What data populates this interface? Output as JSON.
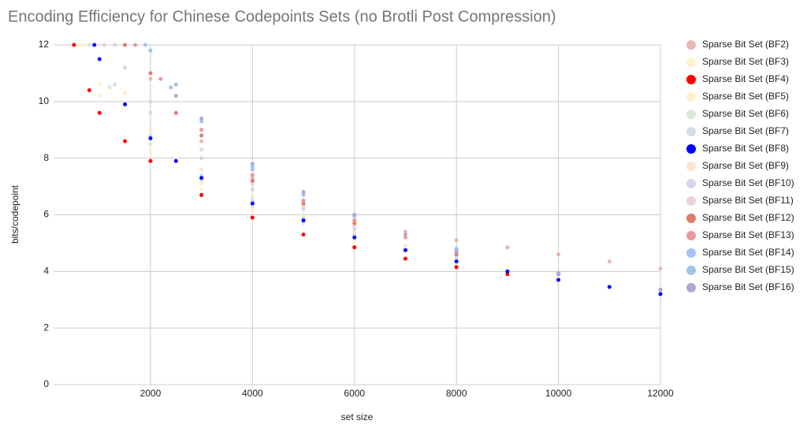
{
  "chart_data": {
    "type": "scatter",
    "title": "Encoding Efficiency for Chinese Codepoints Sets (no Brotli Post Compression)",
    "x_label": "set size",
    "y_label": "bits/codepoint",
    "xlim": [
      100,
      12000
    ],
    "ylim": [
      0,
      12
    ],
    "xticks": [
      2000,
      4000,
      6000,
      8000,
      10000,
      12000
    ],
    "yticks": [
      0,
      2,
      4,
      6,
      8,
      10,
      12
    ],
    "grid": true,
    "legend": "right",
    "series": [
      {
        "name": "Sparse Bit Set (BF2)",
        "color": "#e6b8af",
        "x": [
          1500,
          2000,
          3000,
          4000,
          5000,
          6000,
          7000,
          8000,
          9000,
          10000,
          11000,
          12000
        ],
        "values": [
          12,
          10.8,
          8.6,
          7.3,
          6.4,
          5.8,
          5.4,
          5.1,
          4.85,
          4.6,
          4.35,
          4.1
        ]
      },
      {
        "name": "Sparse Bit Set (BF3)",
        "color": "#fff2cc",
        "x": [
          600,
          1000,
          2000,
          3000,
          4000,
          6000,
          8000,
          10000,
          12000
        ],
        "values": [
          12,
          10.2,
          8.1,
          6.9,
          6.1,
          5.0,
          4.2,
          3.8,
          3.4
        ]
      },
      {
        "name": "Sparse Bit Set (BF4)",
        "color": "#ff0000",
        "x": [
          500,
          800,
          1000,
          1500,
          2000,
          3000,
          4000,
          5000,
          6000,
          7000,
          8000,
          9000
        ],
        "values": [
          12,
          10.4,
          9.6,
          8.6,
          7.9,
          6.7,
          5.9,
          5.3,
          4.85,
          4.45,
          4.15,
          3.9
        ]
      },
      {
        "name": "Sparse Bit Set (BF5)",
        "color": "#fff2cc",
        "x": [
          700,
          1000,
          2000,
          3000,
          4000,
          6000,
          8000,
          10000,
          12000
        ],
        "values": [
          12,
          10.6,
          8.3,
          7.1,
          6.2,
          5.1,
          4.3,
          3.8,
          3.4
        ]
      },
      {
        "name": "Sparse Bit Set (BF6)",
        "color": "#d9ead3",
        "x": [
          800,
          1200,
          2000,
          3000,
          4000,
          5000,
          6000,
          8000
        ],
        "values": [
          12,
          10.5,
          8.5,
          7.2,
          6.3,
          5.7,
          5.2,
          4.4
        ]
      },
      {
        "name": "Sparse Bit Set (BF7)",
        "color": "#d0e0e3",
        "x": [
          900,
          1300,
          2000,
          3000,
          4000,
          5000,
          6000
        ],
        "values": [
          12,
          10.6,
          8.8,
          7.4,
          6.5,
          5.9,
          5.3
        ]
      },
      {
        "name": "Sparse Bit Set (BF8)",
        "color": "#0000ff",
        "x": [
          900,
          1000,
          1500,
          2000,
          2500,
          3000,
          4000,
          5000,
          6000,
          7000,
          8000,
          9000,
          10000,
          11000,
          12000
        ],
        "values": [
          12,
          11.5,
          9.9,
          8.7,
          7.9,
          7.3,
          6.4,
          5.8,
          5.2,
          4.75,
          4.35,
          4.0,
          3.7,
          3.45,
          3.2
        ]
      },
      {
        "name": "Sparse Bit Set (BF9)",
        "color": "#fce5cd",
        "x": [
          1000,
          1500,
          2000,
          3000,
          4000,
          5000,
          6000,
          7000
        ],
        "values": [
          12,
          10.3,
          9.0,
          7.6,
          6.6,
          6.0,
          5.4,
          4.9
        ]
      },
      {
        "name": "Sparse Bit Set (BF10)",
        "color": "#d9d2e9",
        "x": [
          1100,
          1500,
          2000,
          3000,
          4000,
          5000,
          6000,
          8000,
          10000,
          12000
        ],
        "values": [
          12,
          11.2,
          9.6,
          8.0,
          6.9,
          6.2,
          5.5,
          4.5,
          3.9,
          3.35
        ]
      },
      {
        "name": "Sparse Bit Set (BF11)",
        "color": "#ead1dc",
        "x": [
          1300,
          2000,
          3000,
          4000,
          5000,
          6000,
          8000,
          10000,
          12000
        ],
        "values": [
          12,
          10.0,
          8.3,
          7.1,
          6.3,
          5.6,
          4.6,
          3.9,
          3.35
        ]
      },
      {
        "name": "Sparse Bit Set (BF12)",
        "color": "#dd7e6b",
        "x": [
          1500,
          2000,
          2500,
          3000,
          4000,
          5000,
          6000,
          8000,
          10000,
          12000
        ],
        "values": [
          12,
          11,
          9.6,
          8.8,
          7.2,
          6.4,
          5.7,
          4.6,
          3.9,
          3.35
        ]
      },
      {
        "name": "Sparse Bit Set (BF13)",
        "color": "#ea9999",
        "x": [
          1700,
          2200,
          3000,
          4000,
          5000,
          6000,
          7000,
          8000,
          10000,
          12000
        ],
        "values": [
          12,
          10.8,
          9.0,
          7.4,
          6.5,
          5.8,
          5.2,
          4.7,
          3.95,
          3.35
        ]
      },
      {
        "name": "Sparse Bit Set (BF14)",
        "color": "#a4c2f4",
        "x": [
          1900,
          2400,
          3000,
          4000,
          5000,
          6000,
          8000,
          10000,
          12000
        ],
        "values": [
          12,
          10.5,
          9.3,
          7.6,
          6.7,
          5.95,
          4.75,
          3.95,
          3.35
        ]
      },
      {
        "name": "Sparse Bit Set (BF15)",
        "color": "#9fc5e8",
        "x": [
          2000,
          2500,
          3000,
          4000,
          5000,
          6000,
          8000,
          10000,
          12000
        ],
        "values": [
          11.8,
          10.6,
          9.4,
          7.7,
          6.8,
          6.0,
          4.8,
          3.95,
          3.35
        ]
      },
      {
        "name": "Sparse Bit Set (BF16)",
        "color": "#b4a7d6",
        "x": [
          2500,
          3000,
          4000,
          5000,
          6000,
          7000,
          8000,
          10000,
          12000
        ],
        "values": [
          10.2,
          9.4,
          7.8,
          6.8,
          6.0,
          5.3,
          4.7,
          3.9,
          3.35
        ]
      }
    ]
  }
}
